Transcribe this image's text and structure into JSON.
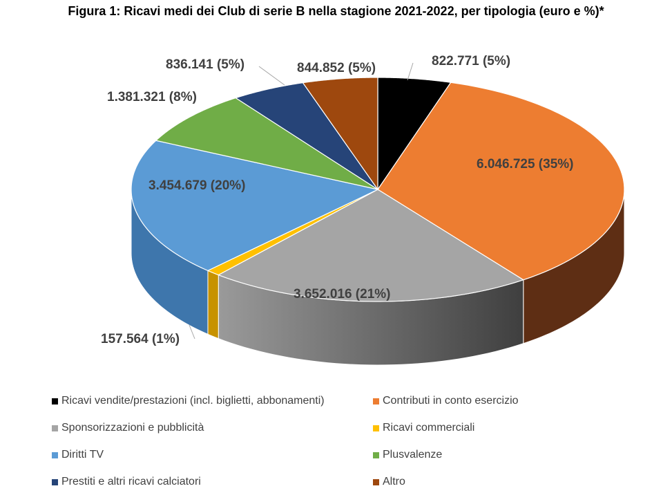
{
  "chart_data": {
    "type": "pie",
    "title": "Figura 1: Ricavi medi dei Club di serie B nella stagione 2021-2022, per tipologia (euro e %)*",
    "style": "3d",
    "legend_position": "bottom",
    "series": [
      {
        "name": "Ricavi vendite/prestazioni (incl. biglietti, abbonamenti)",
        "value": 822771,
        "label": "822.771 (5%)",
        "color": "#000000",
        "side": "#000000"
      },
      {
        "name": "Contributi in conto esercizio",
        "value": 6046725,
        "label": "6.046.725 (35%)",
        "color": "#ED7D31",
        "side": "#5E2E14"
      },
      {
        "name": "Sponsorizzazioni e pubblicità",
        "value": 3652016,
        "label": "3.652.016 (21%)",
        "color": "#A5A5A5",
        "side": "#5A5A5A"
      },
      {
        "name": "Ricavi commerciali",
        "value": 157564,
        "label": "157.564 (1%)",
        "color": "#FFC000",
        "side": "#C79200"
      },
      {
        "name": "Diritti TV",
        "value": 3454679,
        "label": "3.454.679 (20%)",
        "color": "#5B9BD5",
        "side": "#3E76AC"
      },
      {
        "name": "Plusvalenze",
        "value": 1381321,
        "label": "1.381.321 (8%)",
        "color": "#70AD47",
        "side": "#4E7F30"
      },
      {
        "name": "Prestiti e altri ricavi calciatori",
        "value": 836141,
        "label": "836.141 (5%)",
        "color": "#264478",
        "side": "#182d52"
      },
      {
        "name": "Altro",
        "value": 844852,
        "label": "844.852  (5%)",
        "color": "#9E480E",
        "side": "#6a2f08"
      }
    ]
  }
}
